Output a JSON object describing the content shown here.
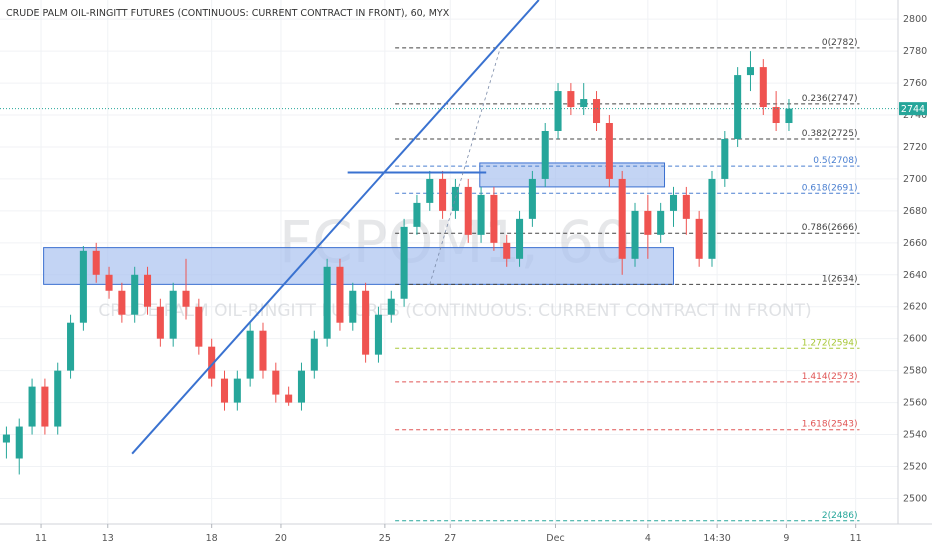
{
  "chart_title": "CRUDE PALM OIL-RINGITT FUTURES (CONTINUOUS: CURRENT CONTRACT IN FRONT), 60, MYX",
  "watermark": {
    "symbol_text": "FCPOM1, 60",
    "description_text": "CRUDE PALM OIL-RINGITT FUTURES (CONTINUOUS: CURRENT CONTRACT IN FRONT)"
  },
  "last_price": {
    "value": 2744,
    "label": "2744",
    "color": "#26a69a"
  },
  "colors": {
    "up": "#26a69a",
    "down": "#ef5350",
    "trendline": "#3a72d0",
    "zone_fill": "#a9c2f0",
    "zone_border": "#3a6fd0",
    "fib_default": "#444444",
    "fib_blue": "#4a7fd0",
    "fib_lime": "#a8c838",
    "fib_red": "#e05555",
    "fib_green": "#26a69a"
  },
  "chart_data": {
    "type": "candlestick",
    "title": "CRUDE PALM OIL-RINGITT FUTURES (CONTINUOUS: CURRENT CONTRACT IN FRONT), 60, MYX",
    "y_axis": {
      "ticks": [
        2500,
        2520,
        2540,
        2560,
        2580,
        2600,
        2620,
        2640,
        2660,
        2680,
        2700,
        2720,
        2740,
        2760,
        2780,
        2800
      ],
      "range": [
        2484,
        2812
      ]
    },
    "x_axis": {
      "range": [
        0,
        70
      ],
      "ticks": [
        {
          "x": 3.2,
          "label": "11"
        },
        {
          "x": 8.4,
          "label": "13"
        },
        {
          "x": 16.5,
          "label": "18"
        },
        {
          "x": 21.9,
          "label": "20"
        },
        {
          "x": 30.0,
          "label": "25"
        },
        {
          "x": 35.1,
          "label": "27"
        },
        {
          "x": 43.3,
          "label": "Dec"
        },
        {
          "x": 50.5,
          "label": "4"
        },
        {
          "x": 55.9,
          "label": "14:30"
        },
        {
          "x": 61.3,
          "label": "9"
        },
        {
          "x": 66.7,
          "label": "11"
        }
      ]
    },
    "candles": [
      [
        2535,
        2540,
        2525,
        2545
      ],
      [
        2525,
        2545,
        2515,
        2550
      ],
      [
        2545,
        2570,
        2540,
        2575
      ],
      [
        2570,
        2545,
        2540,
        2575
      ],
      [
        2545,
        2580,
        2540,
        2585
      ],
      [
        2580,
        2610,
        2575,
        2615
      ],
      [
        2610,
        2655,
        2605,
        2658
      ],
      [
        2655,
        2640,
        2635,
        2660
      ],
      [
        2640,
        2630,
        2625,
        2645
      ],
      [
        2630,
        2615,
        2610,
        2635
      ],
      [
        2615,
        2640,
        2610,
        2645
      ],
      [
        2640,
        2620,
        2615,
        2645
      ],
      [
        2620,
        2600,
        2595,
        2625
      ],
      [
        2600,
        2630,
        2595,
        2635
      ],
      [
        2630,
        2620,
        2612,
        2650
      ],
      [
        2620,
        2595,
        2590,
        2625
      ],
      [
        2595,
        2575,
        2570,
        2600
      ],
      [
        2575,
        2560,
        2555,
        2580
      ],
      [
        2560,
        2575,
        2555,
        2580
      ],
      [
        2575,
        2605,
        2570,
        2610
      ],
      [
        2605,
        2580,
        2575,
        2610
      ],
      [
        2580,
        2565,
        2560,
        2585
      ],
      [
        2565,
        2560,
        2558,
        2570
      ],
      [
        2560,
        2580,
        2555,
        2585
      ],
      [
        2580,
        2600,
        2575,
        2605
      ],
      [
        2600,
        2645,
        2595,
        2650
      ],
      [
        2645,
        2610,
        2605,
        2650
      ],
      [
        2610,
        2630,
        2605,
        2635
      ],
      [
        2630,
        2590,
        2585,
        2635
      ],
      [
        2590,
        2615,
        2585,
        2620
      ],
      [
        2615,
        2625,
        2610,
        2630
      ],
      [
        2625,
        2670,
        2620,
        2675
      ],
      [
        2670,
        2685,
        2665,
        2690
      ],
      [
        2685,
        2700,
        2680,
        2705
      ],
      [
        2700,
        2680,
        2675,
        2705
      ],
      [
        2680,
        2695,
        2675,
        2700
      ],
      [
        2695,
        2665,
        2660,
        2700
      ],
      [
        2665,
        2690,
        2660,
        2695
      ],
      [
        2690,
        2660,
        2655,
        2695
      ],
      [
        2660,
        2650,
        2645,
        2665
      ],
      [
        2650,
        2675,
        2645,
        2680
      ],
      [
        2675,
        2700,
        2670,
        2705
      ],
      [
        2700,
        2730,
        2695,
        2735
      ],
      [
        2730,
        2755,
        2725,
        2760
      ],
      [
        2755,
        2745,
        2740,
        2760
      ],
      [
        2745,
        2750,
        2740,
        2760
      ],
      [
        2750,
        2735,
        2730,
        2755
      ],
      [
        2735,
        2700,
        2695,
        2740
      ],
      [
        2700,
        2650,
        2640,
        2705
      ],
      [
        2650,
        2680,
        2645,
        2685
      ],
      [
        2680,
        2665,
        2650,
        2690
      ],
      [
        2665,
        2680,
        2660,
        2685
      ],
      [
        2680,
        2690,
        2670,
        2695
      ],
      [
        2690,
        2675,
        2665,
        2695
      ],
      [
        2675,
        2650,
        2645,
        2680
      ],
      [
        2650,
        2700,
        2645,
        2705
      ],
      [
        2700,
        2725,
        2695,
        2730
      ],
      [
        2725,
        2765,
        2720,
        2770
      ],
      [
        2765,
        2770,
        2755,
        2780
      ],
      [
        2770,
        2745,
        2740,
        2775
      ],
      [
        2745,
        2735,
        2730,
        2755
      ],
      [
        2735,
        2744,
        2730,
        2750
      ]
    ],
    "trendlines": [
      {
        "x1": 10.3,
        "y1": 2528,
        "x2": 42.0,
        "y2": 2812
      },
      {
        "x1": 27.1,
        "y1": 2704,
        "x2": 37.9,
        "y2": 2704
      },
      {
        "x1": 33.5,
        "y1": 2634,
        "x2": 39.0,
        "y2": 2782
      }
    ],
    "zones": [
      {
        "x1": 3.4,
        "x2": 52.5,
        "y_low": 2634,
        "y_high": 2657
      },
      {
        "x1": 37.4,
        "x2": 51.8,
        "y_low": 2695,
        "y_high": 2710
      }
    ],
    "fibonacci": {
      "x_start": 30.8,
      "x_end": 67.0,
      "levels": [
        {
          "label": "0(2782)",
          "price": 2782,
          "tone": "default"
        },
        {
          "label": "0.236(2747)",
          "price": 2747,
          "tone": "default"
        },
        {
          "label": "0.382(2725)",
          "price": 2725,
          "tone": "default"
        },
        {
          "label": "0.5(2708)",
          "price": 2708,
          "tone": "blue"
        },
        {
          "label": "0.618(2691)",
          "price": 2691,
          "tone": "blue"
        },
        {
          "label": "0.786(2666)",
          "price": 2666,
          "tone": "default"
        },
        {
          "label": "1(2634)",
          "price": 2634,
          "tone": "default"
        },
        {
          "label": "1.272(2594)",
          "price": 2594,
          "tone": "lime"
        },
        {
          "label": "1.414(2573)",
          "price": 2573,
          "tone": "red"
        },
        {
          "label": "1.618(2543)",
          "price": 2543,
          "tone": "red"
        },
        {
          "label": "2(2486)",
          "price": 2486,
          "tone": "green"
        }
      ]
    }
  }
}
